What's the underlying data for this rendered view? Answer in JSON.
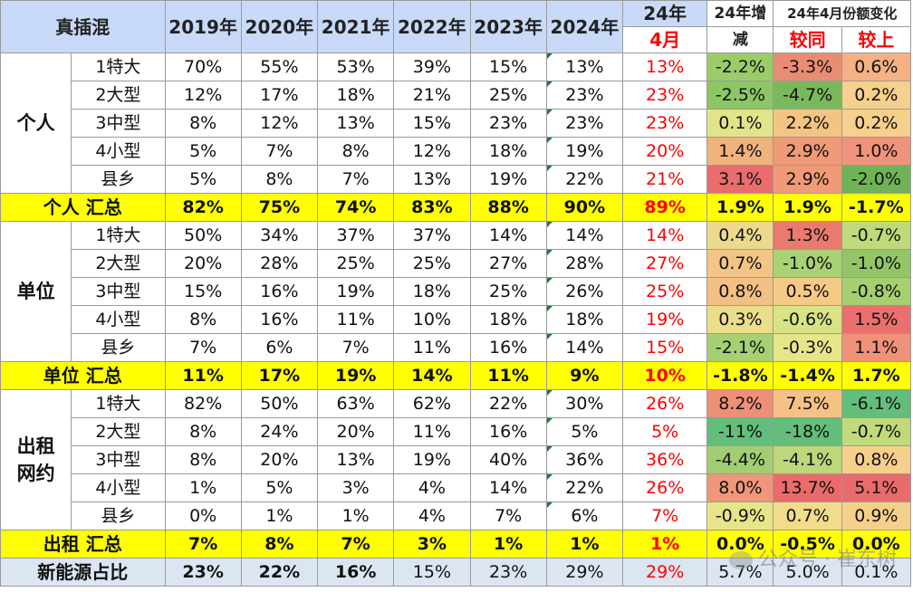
{
  "header": {
    "corner": "真插混",
    "years": [
      "2019年",
      "2020年",
      "2021年",
      "2022年",
      "2023年",
      "2024年"
    ],
    "col24_top": "24年",
    "col24_bottom": "4月",
    "change_top": "24年增",
    "change_bottom": "减",
    "share_change": "24年4月份额变化",
    "yoy": "较同",
    "mom": "较上"
  },
  "groups": [
    {
      "name": "个人",
      "rows": [
        {
          "seg": "1特大",
          "vals": [
            "70%",
            "55%",
            "53%",
            "39%",
            "15%",
            "13%",
            "13%",
            "-2.2%",
            "-3.3%",
            "0.6%"
          ],
          "bg": [
            "#9acd6a",
            "#e88d73",
            "#f4b183"
          ]
        },
        {
          "seg": "2大型",
          "vals": [
            "12%",
            "17%",
            "18%",
            "21%",
            "25%",
            "23%",
            "23%",
            "-2.5%",
            "-4.7%",
            "0.2%"
          ],
          "bg": [
            "#8cc665",
            "#7ab85c",
            "#f6d08c"
          ]
        },
        {
          "seg": "3中型",
          "vals": [
            "8%",
            "12%",
            "13%",
            "15%",
            "23%",
            "23%",
            "23%",
            "0.1%",
            "2.2%",
            "0.2%"
          ],
          "bg": [
            "#e2e489",
            "#f3c483",
            "#f6d08c"
          ]
        },
        {
          "seg": "4小型",
          "vals": [
            "5%",
            "7%",
            "8%",
            "12%",
            "18%",
            "19%",
            "20%",
            "1.4%",
            "2.9%",
            "1.0%"
          ],
          "bg": [
            "#f1b37e",
            "#f09a77",
            "#f0937a"
          ]
        },
        {
          "seg": "县乡",
          "vals": [
            "5%",
            "8%",
            "7%",
            "13%",
            "19%",
            "22%",
            "21%",
            "3.1%",
            "2.9%",
            "-2.0%"
          ],
          "bg": [
            "#ea6d6d",
            "#f09a77",
            "#6fb356"
          ]
        }
      ],
      "sum": {
        "label": "个人 汇总",
        "vals": [
          "82%",
          "75%",
          "74%",
          "83%",
          "88%",
          "90%",
          "89%",
          "1.9%",
          "1.9%",
          "-1.7%"
        ]
      }
    },
    {
      "name": "单位",
      "rows": [
        {
          "seg": "1特大",
          "vals": [
            "50%",
            "34%",
            "37%",
            "37%",
            "14%",
            "14%",
            "14%",
            "0.4%",
            "1.3%",
            "-0.7%"
          ],
          "bg": [
            "#ecd98b",
            "#ea7a70",
            "#c0d97a"
          ]
        },
        {
          "seg": "2大型",
          "vals": [
            "20%",
            "28%",
            "25%",
            "25%",
            "27%",
            "28%",
            "27%",
            "0.7%",
            "-1.0%",
            "-1.0%"
          ],
          "bg": [
            "#f2c486",
            "#a9d275",
            "#93c567"
          ]
        },
        {
          "seg": "3中型",
          "vals": [
            "15%",
            "16%",
            "19%",
            "18%",
            "25%",
            "26%",
            "25%",
            "0.8%",
            "0.5%",
            "-0.8%"
          ],
          "bg": [
            "#f2bf84",
            "#f5ca87",
            "#a6cf70"
          ]
        },
        {
          "seg": "4小型",
          "vals": [
            "8%",
            "16%",
            "11%",
            "10%",
            "18%",
            "18%",
            "19%",
            "0.3%",
            "-0.6%",
            "1.5%"
          ],
          "bg": [
            "#ecdd8b",
            "#d7e385",
            "#ec6f6f"
          ]
        },
        {
          "seg": "县乡",
          "vals": [
            "7%",
            "6%",
            "7%",
            "11%",
            "16%",
            "14%",
            "15%",
            "-2.1%",
            "-0.3%",
            "1.1%"
          ],
          "bg": [
            "#a6d073",
            "#e6e58a",
            "#f0917a"
          ]
        }
      ],
      "sum": {
        "label": "单位 汇总",
        "vals": [
          "11%",
          "17%",
          "19%",
          "14%",
          "11%",
          "9%",
          "10%",
          "-1.8%",
          "-1.4%",
          "1.7%"
        ]
      }
    },
    {
      "name": "出租\n网约",
      "rows": [
        {
          "seg": "1特大",
          "vals": [
            "82%",
            "50%",
            "63%",
            "62%",
            "22%",
            "30%",
            "26%",
            "8.2%",
            "7.5%",
            "-6.1%"
          ],
          "bg": [
            "#ee8f78",
            "#f5c286",
            "#63be7b"
          ]
        },
        {
          "seg": "2大型",
          "vals": [
            "8%",
            "24%",
            "20%",
            "11%",
            "16%",
            "5%",
            "5%",
            "-11%",
            "-18%",
            "-0.7%"
          ],
          "bg": [
            "#63be7b",
            "#63be7b",
            "#c0d97a"
          ]
        },
        {
          "seg": "3中型",
          "vals": [
            "8%",
            "20%",
            "13%",
            "19%",
            "40%",
            "36%",
            "36%",
            "-4.4%",
            "-4.1%",
            "0.8%"
          ],
          "bg": [
            "#a2cd72",
            "#bdd77a",
            "#f5d08b"
          ]
        },
        {
          "seg": "4小型",
          "vals": [
            "1%",
            "5%",
            "3%",
            "4%",
            "14%",
            "22%",
            "26%",
            "8.0%",
            "13.7%",
            "5.1%"
          ],
          "bg": [
            "#f0967a",
            "#ea6b6b",
            "#ea6b6b"
          ]
        },
        {
          "seg": "县乡",
          "vals": [
            "0%",
            "1%",
            "1%",
            "4%",
            "7%",
            "6%",
            "7%",
            "-0.9%",
            "0.7%",
            "0.9%"
          ],
          "bg": [
            "#e7e58a",
            "#f2dc8c",
            "#f5d08b"
          ]
        }
      ],
      "sum": {
        "label": "出租 汇总",
        "vals": [
          "7%",
          "8%",
          "7%",
          "3%",
          "1%",
          "1%",
          "1%",
          "0.0%",
          "-0.5%",
          "0.0%"
        ]
      }
    }
  ],
  "last": {
    "label": "新能源占比",
    "vals": [
      "23%",
      "22%",
      "16%",
      "15%",
      "23%",
      "29%",
      "29%",
      "5.7%",
      "5.0%",
      "0.1%"
    ]
  },
  "watermark": "公众号 · 崔东树"
}
